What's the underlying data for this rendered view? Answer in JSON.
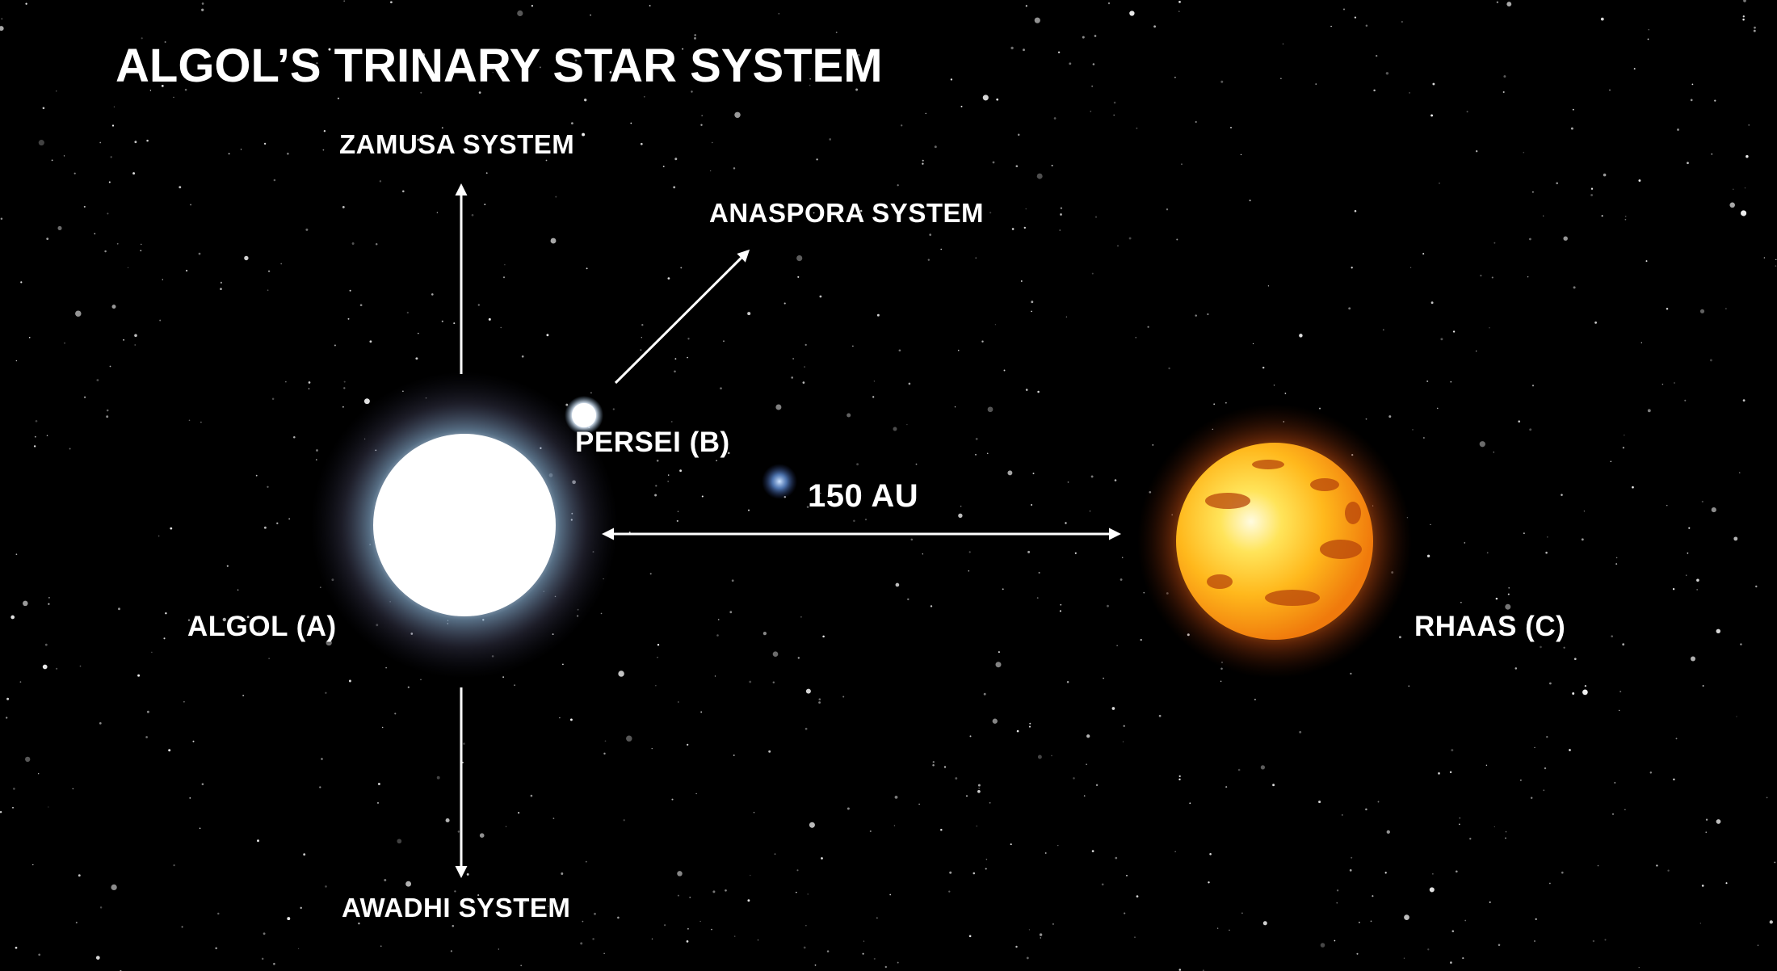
{
  "title": "ALGOL’S TRINARY STAR SYSTEM",
  "stars": {
    "algol": {
      "label": "ALGOL (A)",
      "color": "#ffffff",
      "glow": "#b9d8ff"
    },
    "persei": {
      "label": "PERSEI (B)",
      "color": "#f2f8ff"
    },
    "rhaas": {
      "label": "RHAAS (C)",
      "color": "#ffc52a",
      "glow": "#ff7a10"
    }
  },
  "distance_label": "150 AU",
  "systems": {
    "zamusa": "ZAMUSA SYSTEM",
    "anaspora": "ANASPORA SYSTEM",
    "awadhi": "AWADHI SYSTEM"
  },
  "colors": {
    "background": "#000000",
    "text": "#ffffff",
    "arrow": "#ffffff"
  }
}
